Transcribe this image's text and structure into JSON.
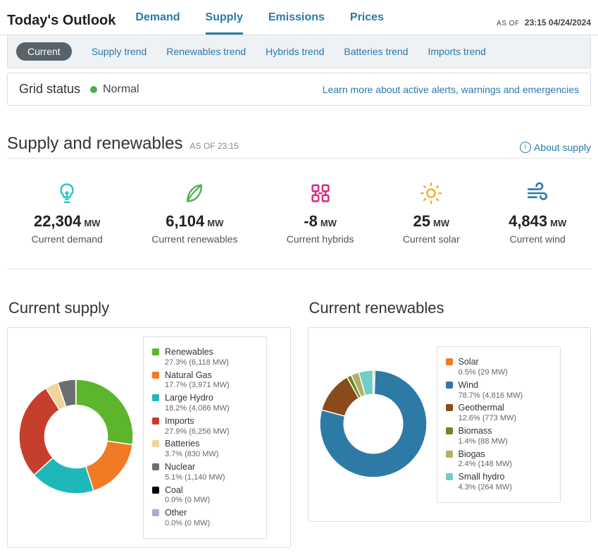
{
  "header": {
    "title": "Today's Outlook",
    "tabs": [
      "Demand",
      "Supply",
      "Emissions",
      "Prices"
    ],
    "active_tab_index": 1,
    "asof_label": "AS OF",
    "asof_value": "23:15 04/24/2024"
  },
  "subtabs": {
    "items": [
      "Current",
      "Supply trend",
      "Renewables trend",
      "Hybrids trend",
      "Batteries trend",
      "Imports trend"
    ],
    "active_index": 0
  },
  "status": {
    "label": "Grid status",
    "state_text": "Normal",
    "dot_color": "#4caf50",
    "link_text": "Learn more about active alerts, warnings and emergencies"
  },
  "section": {
    "title": "Supply and renewables",
    "asof": "AS OF 23:15",
    "about_link": "About supply"
  },
  "metrics": [
    {
      "icon": "bulb",
      "icon_color": "#1cc2c2",
      "value": "22,304",
      "unit": "MW",
      "label": "Current demand"
    },
    {
      "icon": "leaf",
      "icon_color": "#4caf50",
      "value": "6,104",
      "unit": "MW",
      "label": "Current renewables"
    },
    {
      "icon": "hybrid",
      "icon_color": "#d1337f",
      "value": "-8",
      "unit": "MW",
      "label": "Current hybrids"
    },
    {
      "icon": "sun",
      "icon_color": "#f5a623",
      "value": "25",
      "unit": "MW",
      "label": "Current solar"
    },
    {
      "icon": "wind",
      "icon_color": "#2a7aa8",
      "value": "4,843",
      "unit": "MW",
      "label": "Current wind"
    }
  ],
  "supply_chart": {
    "title": "Current supply",
    "type": "donut",
    "inner_ratio": 0.55,
    "size": 170,
    "background": "#ffffff",
    "slices": [
      {
        "name": "Renewables",
        "pct": 27.3,
        "mw": "6,118",
        "color": "#5cb52b"
      },
      {
        "name": "Natural Gas",
        "pct": 17.7,
        "mw": "3,971",
        "color": "#f17a24"
      },
      {
        "name": "Large Hydro",
        "pct": 18.2,
        "mw": "4,086",
        "color": "#1fb8b8"
      },
      {
        "name": "Imports",
        "pct": 27.9,
        "mw": "6,256",
        "color": "#c63f2c"
      },
      {
        "name": "Batteries",
        "pct": 3.7,
        "mw": "830",
        "color": "#f2d39a"
      },
      {
        "name": "Nuclear",
        "pct": 5.1,
        "mw": "1,140",
        "color": "#6b6f72"
      },
      {
        "name": "Coal",
        "pct": 0.0,
        "mw": "0",
        "color": "#000000"
      },
      {
        "name": "Other",
        "pct": 0.0,
        "mw": "0",
        "color": "#b8a6cf"
      }
    ]
  },
  "renew_chart": {
    "title": "Current renewables",
    "type": "donut",
    "inner_ratio": 0.55,
    "size": 160,
    "background": "#ffffff",
    "slices": [
      {
        "name": "Solar",
        "pct": 0.5,
        "mw": "29",
        "color": "#f17a24"
      },
      {
        "name": "Wind",
        "pct": 78.7,
        "mw": "4,816",
        "color": "#2d7aa6"
      },
      {
        "name": "Geothermal",
        "pct": 12.6,
        "mw": "773",
        "color": "#8a4a1a"
      },
      {
        "name": "Biomass",
        "pct": 1.4,
        "mw": "88",
        "color": "#6a8a1f"
      },
      {
        "name": "Biogas",
        "pct": 2.4,
        "mw": "148",
        "color": "#b4ae62"
      },
      {
        "name": "Small hydro",
        "pct": 4.3,
        "mw": "264",
        "color": "#6ecfc5"
      }
    ]
  }
}
